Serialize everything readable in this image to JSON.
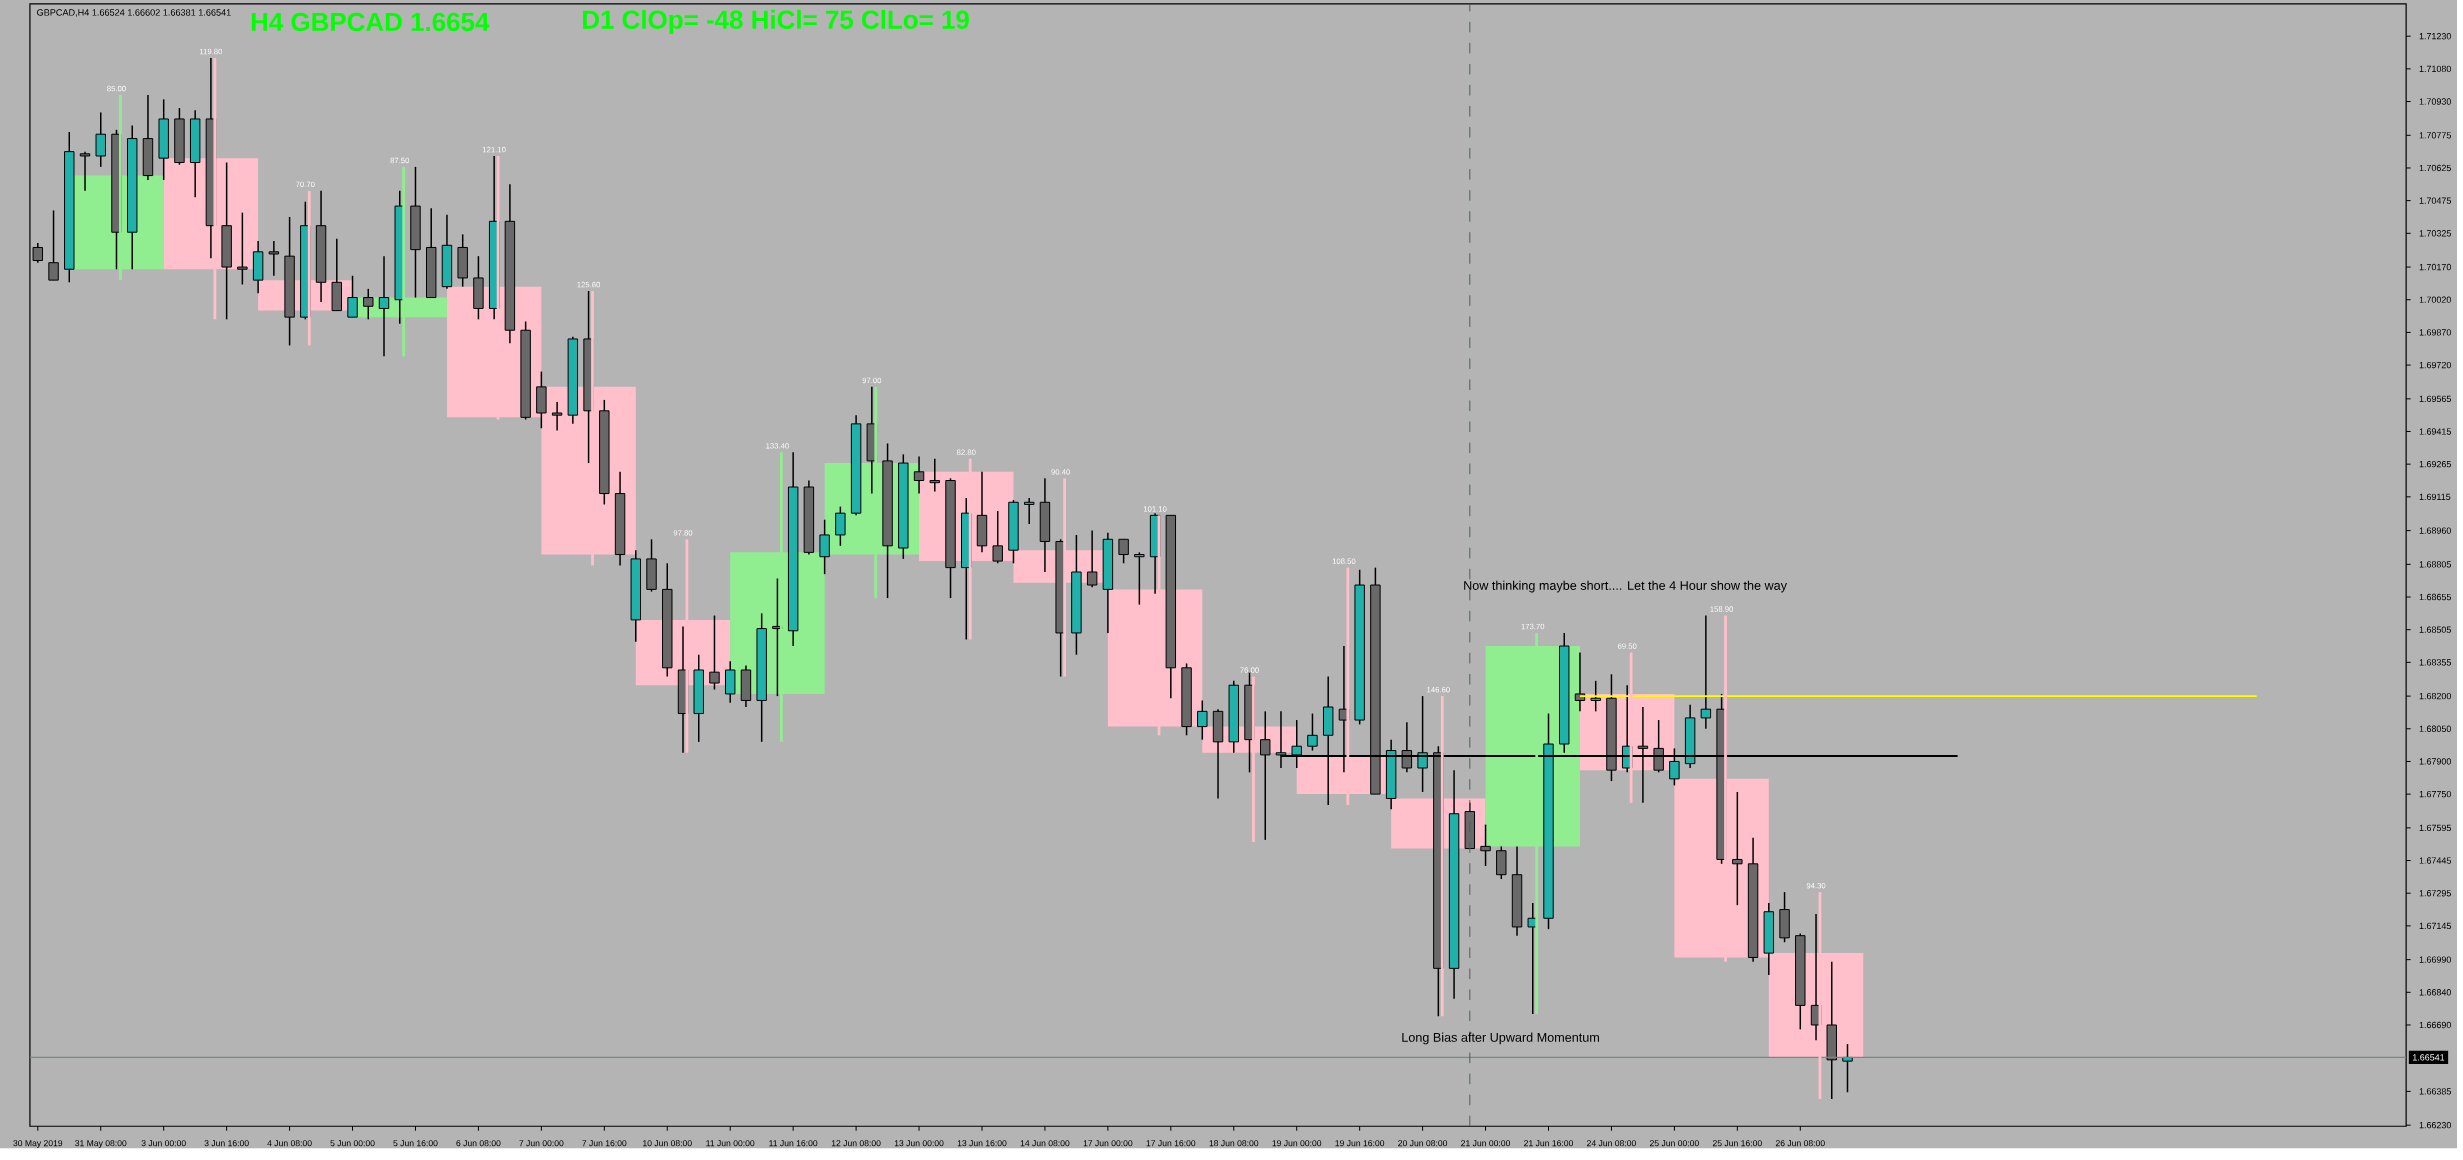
{
  "chart_data": {
    "type": "candlestick",
    "title": "H4 GBPCAD 1.6654",
    "subtitle": "D1 ClOp= -48 HiCl= 75 ClLo= 19",
    "annotations": [
      "GBPCAD,H4 1.66524 1.66602 1.66381 1.66541",
      "Now thinking maybe short.... Let the 4 Hour show the way",
      "Long Bias after Upward Momentum"
    ],
    "categories": [
      "30 May 2019",
      null,
      null,
      null,
      "31 May 08:00",
      null,
      null,
      null,
      "3 Jun 00:00",
      null,
      null,
      null,
      "3 Jun 16:00",
      null,
      null,
      null,
      "4 Jun 08:00",
      null,
      null,
      null,
      "5 Jun 00:00",
      null,
      null,
      null,
      "5 Jun 16:00",
      null,
      null,
      null,
      "6 Jun 08:00",
      null,
      null,
      null,
      "7 Jun 00:00",
      null,
      null,
      null,
      "7 Jun 16:00",
      null,
      null,
      null,
      "10 Jun 08:00",
      null,
      null,
      null,
      "11 Jun 00:00",
      null,
      null,
      null,
      "11 Jun 16:00",
      null,
      null,
      null,
      "12 Jun 08:00",
      null,
      null,
      null,
      "13 Jun 00:00",
      null,
      null,
      null,
      "13 Jun 16:00",
      null,
      null,
      null,
      "14 Jun 08:00",
      null,
      null,
      null,
      "17 Jun 00:00",
      null,
      null,
      null,
      "17 Jun 16:00",
      null,
      null,
      null,
      "18 Jun 08:00",
      null,
      null,
      null,
      "19 Jun 00:00",
      null,
      null,
      null,
      "19 Jun 16:00",
      null,
      null,
      null,
      "20 Jun 08:00",
      null,
      null,
      null,
      "21 Jun 00:00",
      null,
      null,
      null,
      "21 Jun 16:00",
      null,
      null,
      null,
      "24 Jun 08:00",
      null,
      null,
      null,
      "25 Jun 00:00",
      null,
      null,
      null,
      "25 Jun 16:00",
      null,
      null,
      null,
      "26 Jun 08:00",
      null,
      null,
      null,
      null,
      null,
      null,
      null,
      null,
      null,
      null,
      null,
      null,
      null,
      null,
      null,
      null,
      null,
      null,
      null,
      null,
      null,
      null,
      null,
      null,
      null,
      null,
      null,
      null,
      null,
      null,
      null,
      null,
      null,
      null,
      null,
      null,
      null,
      null
    ],
    "ylim": [
      1.66225,
      1.71378
    ],
    "yticks": [
      {
        "value": 1.7123,
        "label": "1.71230"
      },
      {
        "value": 1.7108,
        "label": "1.71080"
      },
      {
        "value": 1.7093,
        "label": "1.70930"
      },
      {
        "value": 1.70775,
        "label": "1.70775"
      },
      {
        "value": 1.70625,
        "label": "1.70625"
      },
      {
        "value": 1.70475,
        "label": "1.70475"
      },
      {
        "value": 1.70325,
        "label": "1.70325"
      },
      {
        "value": 1.7017,
        "label": "1.70170"
      },
      {
        "value": 1.7002,
        "label": "1.70020"
      },
      {
        "value": 1.6987,
        "label": "1.69870"
      },
      {
        "value": 1.6972,
        "label": "1.69720"
      },
      {
        "value": 1.69565,
        "label": "1.69565"
      },
      {
        "value": 1.69415,
        "label": "1.69415"
      },
      {
        "value": 1.69265,
        "label": "1.69265"
      },
      {
        "value": 1.69115,
        "label": "1.69115"
      },
      {
        "value": 1.6896,
        "label": "1.68960"
      },
      {
        "value": 1.68805,
        "label": "1.68805"
      },
      {
        "value": 1.68655,
        "label": "1.68655"
      },
      {
        "value": 1.68505,
        "label": "1.68505"
      },
      {
        "value": 1.68355,
        "label": "1.68355"
      },
      {
        "value": 1.682,
        "label": "1.68200"
      },
      {
        "value": 1.6805,
        "label": "1.68050"
      },
      {
        "value": 1.679,
        "label": "1.67900"
      },
      {
        "value": 1.6775,
        "label": "1.67750"
      },
      {
        "value": 1.67595,
        "label": "1.67595"
      },
      {
        "value": 1.67445,
        "label": "1.67445"
      },
      {
        "value": 1.67295,
        "label": "1.67295"
      },
      {
        "value": 1.67145,
        "label": "1.67145"
      },
      {
        "value": 1.6699,
        "label": "1.66990"
      },
      {
        "value": 1.6684,
        "label": "1.66840"
      },
      {
        "value": 1.6669,
        "label": "1.66690"
      },
      {
        "value": 1.66385,
        "label": "1.66385"
      },
      {
        "value": 1.6623,
        "label": "1.66230"
      }
    ],
    "ref_lines": [
      {
        "axis": "y",
        "value": 1.66541,
        "label": "1.66541",
        "color": "#778888"
      }
    ],
    "series": [
      {
        "type": "candlestick",
        "ohlc": [
          null,
          null,
          null,
          null,
          null,
          [
            1.7016,
            1.7096,
            1.7011,
            1.7059
          ],
          null,
          null,
          null,
          null,
          null,
          [
            1.7067,
            1.7113,
            1.6993,
            1.7016
          ],
          null,
          null,
          null,
          null,
          null,
          [
            1.7011,
            1.7052,
            1.6981,
            1.6997
          ],
          null,
          null,
          null,
          null,
          null,
          [
            1.6994,
            1.7063,
            1.6976,
            1.7003
          ],
          null,
          null,
          null,
          null,
          null,
          [
            1.7008,
            1.7068,
            1.6947,
            1.6948
          ],
          null,
          null,
          null,
          null,
          null,
          [
            1.6962,
            1.7006,
            1.688,
            1.6885
          ],
          null,
          null,
          null,
          null,
          null,
          [
            1.6855,
            1.6892,
            1.6794,
            1.6825
          ],
          null,
          null,
          null,
          null,
          null,
          [
            1.6821,
            1.6932,
            1.6799,
            1.6886
          ],
          null,
          null,
          null,
          null,
          null,
          [
            1.6885,
            1.6962,
            1.6865,
            1.6927
          ],
          null,
          null,
          null,
          null,
          null,
          [
            1.6923,
            1.6929,
            1.6846,
            1.6882
          ],
          null,
          null,
          null,
          null,
          null,
          [
            1.6887,
            1.692,
            1.6829,
            1.6872
          ],
          null,
          null,
          null,
          null,
          null,
          [
            1.6869,
            1.6903,
            1.6802,
            1.6806
          ],
          null,
          null,
          null,
          null,
          null,
          [
            1.6806,
            1.6829,
            1.6753,
            1.6794
          ],
          null,
          null,
          null,
          null,
          null,
          [
            1.6793,
            1.6879,
            1.677,
            1.6775
          ],
          null,
          null,
          null,
          null,
          null,
          [
            1.6773,
            1.682,
            1.6673,
            1.675
          ],
          null,
          null,
          null,
          null,
          null,
          [
            1.6751,
            1.6849,
            1.6674,
            1.6843
          ],
          null,
          null,
          null,
          null,
          null,
          [
            1.6821,
            1.684,
            1.6771,
            1.6786
          ],
          null,
          null,
          null,
          null,
          null,
          [
            1.6782,
            1.6857,
            1.6698,
            1.67
          ],
          null,
          null,
          null,
          null,
          null,
          [
            1.6702,
            1.673,
            1.6635,
            1.66541
          ],
          null,
          null,
          null,
          null,
          null,
          null,
          null,
          null,
          null,
          null,
          null,
          null,
          null,
          null,
          null,
          null,
          null,
          null,
          null,
          null,
          null,
          null,
          null,
          null,
          null,
          null,
          null,
          null,
          null,
          null,
          null,
          null,
          null,
          null,
          null,
          null,
          null
        ],
        "value_labels": [
          null,
          null,
          null,
          null,
          null,
          "85.00",
          null,
          null,
          null,
          null,
          null,
          "119.80",
          null,
          null,
          null,
          null,
          null,
          "70.70",
          null,
          null,
          null,
          null,
          null,
          "87.50",
          null,
          null,
          null,
          null,
          null,
          "121.10",
          null,
          null,
          null,
          null,
          null,
          "125.60",
          null,
          null,
          null,
          null,
          null,
          "97.80",
          null,
          null,
          null,
          null,
          null,
          "133.40",
          null,
          null,
          null,
          null,
          null,
          "97.00",
          null,
          null,
          null,
          null,
          null,
          "82.80",
          null,
          null,
          null,
          null,
          null,
          "90.40",
          null,
          null,
          null,
          null,
          null,
          "101.10",
          null,
          null,
          null,
          null,
          null,
          "76.00",
          null,
          null,
          null,
          null,
          null,
          "108.50",
          null,
          null,
          null,
          null,
          null,
          "146.60",
          null,
          null,
          null,
          null,
          null,
          "173.70",
          null,
          null,
          null,
          null,
          null,
          "69.50",
          null,
          null,
          null,
          null,
          null,
          "158.90",
          null,
          null,
          null,
          null,
          null,
          "94.30",
          null,
          null,
          null,
          null,
          null,
          null,
          null,
          null,
          null,
          null,
          null,
          null,
          null,
          null,
          null,
          null,
          null,
          null,
          null,
          null,
          null,
          null,
          null,
          null,
          null,
          null,
          null,
          null,
          null,
          null,
          null,
          null,
          null,
          null,
          null,
          null,
          null
        ],
        "colors": [
          null,
          null,
          null,
          null,
          null,
          "#90ee90",
          null,
          null,
          null,
          null,
          null,
          "#ffc0cb",
          null,
          null,
          null,
          null,
          null,
          "#ffc0cb",
          null,
          null,
          null,
          null,
          null,
          "#90ee90",
          null,
          null,
          null,
          null,
          null,
          "#ffc0cb",
          null,
          null,
          null,
          null,
          null,
          "#ffc0cb",
          null,
          null,
          null,
          null,
          null,
          "#ffc0cb",
          null,
          null,
          null,
          null,
          null,
          "#90ee90",
          null,
          null,
          null,
          null,
          null,
          "#90ee90",
          null,
          null,
          null,
          null,
          null,
          "#ffc0cb",
          null,
          null,
          null,
          null,
          null,
          "#ffc0cb",
          null,
          null,
          null,
          null,
          null,
          "#ffc0cb",
          null,
          null,
          null,
          null,
          null,
          "#ffc0cb",
          null,
          null,
          null,
          null,
          null,
          "#ffc0cb",
          null,
          null,
          null,
          null,
          null,
          "#ffc0cb",
          null,
          null,
          null,
          null,
          null,
          "#90ee90",
          null,
          null,
          null,
          null,
          null,
          "#ffc0cb",
          null,
          null,
          null,
          null,
          null,
          "#ffc0cb",
          null,
          null,
          null,
          null,
          null,
          "#ffc0cb",
          null,
          null,
          null,
          null,
          null,
          null,
          null,
          null,
          null,
          null,
          null,
          null,
          null,
          null,
          null,
          null,
          null,
          null,
          null,
          null,
          null,
          null,
          null,
          null,
          null,
          null,
          null,
          null,
          null,
          null,
          null,
          null,
          null,
          null,
          null,
          null,
          null
        ]
      },
      {
        "ohlc": [
          [
            1.7026,
            1.7028,
            1.7019,
            1.702
          ],
          [
            1.7019,
            1.7043,
            1.7011,
            1.7011
          ],
          [
            1.7016,
            1.7079,
            1.701,
            1.707
          ],
          [
            1.7069,
            1.707,
            1.7052,
            1.7068
          ],
          [
            1.7068,
            1.7088,
            1.7063,
            1.7078
          ],
          [
            1.7078,
            1.708,
            1.7016,
            1.7033
          ],
          [
            1.7033,
            1.7082,
            1.7016,
            1.7076
          ],
          [
            1.7076,
            1.7096,
            1.7057,
            1.7059
          ],
          [
            1.7067,
            1.7094,
            1.7057,
            1.7085
          ],
          [
            1.7085,
            1.709,
            1.7064,
            1.7065
          ],
          [
            1.7065,
            1.7089,
            1.7049,
            1.7085
          ],
          [
            1.7085,
            1.7113,
            1.7021,
            1.7036
          ],
          [
            1.7036,
            1.7065,
            1.6993,
            1.7017
          ],
          [
            1.7017,
            1.7042,
            1.7009,
            1.7016
          ],
          [
            1.7011,
            1.7029,
            1.7005,
            1.7024
          ],
          [
            1.7024,
            1.7029,
            1.7013,
            1.7023
          ],
          [
            1.7022,
            1.704,
            1.6981,
            1.6994
          ],
          [
            1.6994,
            1.7047,
            1.6993,
            1.7036
          ],
          [
            1.7036,
            1.7052,
            1.7001,
            1.701
          ],
          [
            1.701,
            1.703,
            1.6997,
            1.6997
          ],
          [
            1.6994,
            1.7013,
            1.6994,
            1.7003
          ],
          [
            1.7003,
            1.7007,
            1.6993,
            1.6999
          ],
          [
            1.6998,
            1.7022,
            1.6976,
            1.7003
          ],
          [
            1.7002,
            1.7052,
            1.6991,
            1.7045
          ],
          [
            1.7045,
            1.7063,
            1.7003,
            1.7025
          ],
          [
            1.7026,
            1.7044,
            1.7003,
            1.7003
          ],
          [
            1.7008,
            1.7041,
            1.7007,
            1.7027
          ],
          [
            1.7026,
            1.7032,
            1.7008,
            1.7012
          ],
          [
            1.7012,
            1.7022,
            1.6993,
            1.6998
          ],
          [
            1.6998,
            1.7068,
            1.6993,
            1.7038
          ],
          [
            1.7038,
            1.7055,
            1.6982,
            1.6988
          ],
          [
            1.6988,
            1.6992,
            1.6947,
            1.6948
          ],
          [
            1.6962,
            1.6969,
            1.6943,
            1.695
          ],
          [
            1.695,
            1.6955,
            1.6942,
            1.6949
          ],
          [
            1.6949,
            1.6985,
            1.6945,
            1.6984
          ],
          [
            1.6984,
            1.7006,
            1.6927,
            1.6951
          ],
          [
            1.6951,
            1.6956,
            1.6908,
            1.6913
          ],
          [
            1.6913,
            1.6923,
            1.688,
            1.6885
          ],
          [
            1.6855,
            1.6887,
            1.6845,
            1.6883
          ],
          [
            1.6883,
            1.6892,
            1.6868,
            1.6869
          ],
          [
            1.6869,
            1.6881,
            1.6829,
            1.6833
          ],
          [
            1.6832,
            1.6852,
            1.6794,
            1.6812
          ],
          [
            1.6812,
            1.6839,
            1.6799,
            1.6832
          ],
          [
            1.6831,
            1.6857,
            1.6823,
            1.6826
          ],
          [
            1.6821,
            1.6836,
            1.6817,
            1.6832
          ],
          [
            1.6832,
            1.6834,
            1.6815,
            1.6818
          ],
          [
            1.6818,
            1.6858,
            1.6799,
            1.6851
          ],
          [
            1.6852,
            1.6874,
            1.682,
            1.6851
          ],
          [
            1.685,
            1.6932,
            1.6843,
            1.6916
          ],
          [
            1.6916,
            1.6919,
            1.6885,
            1.6886
          ],
          [
            1.6884,
            1.6901,
            1.6876,
            1.6894
          ],
          [
            1.6894,
            1.6907,
            1.6889,
            1.6904
          ],
          [
            1.6904,
            1.6949,
            1.6903,
            1.6945
          ],
          [
            1.6945,
            1.6962,
            1.6913,
            1.6928
          ],
          [
            1.6928,
            1.6936,
            1.6865,
            1.6889
          ],
          [
            1.6888,
            1.6931,
            1.6883,
            1.6927
          ],
          [
            1.6923,
            1.693,
            1.6913,
            1.6919
          ],
          [
            1.6919,
            1.6929,
            1.6914,
            1.6918
          ],
          [
            1.6919,
            1.692,
            1.6865,
            1.6879
          ],
          [
            1.6879,
            1.6911,
            1.6846,
            1.6904
          ],
          [
            1.6903,
            1.6923,
            1.6886,
            1.6889
          ],
          [
            1.6889,
            1.6905,
            1.6881,
            1.6882
          ],
          [
            1.6887,
            1.691,
            1.6881,
            1.6909
          ],
          [
            1.6908,
            1.6911,
            1.6899,
            1.6909
          ],
          [
            1.6909,
            1.692,
            1.6877,
            1.6891
          ],
          [
            1.6891,
            1.6892,
            1.6829,
            1.6849
          ],
          [
            1.6849,
            1.6894,
            1.6839,
            1.6877
          ],
          [
            1.6877,
            1.6896,
            1.687,
            1.6871
          ],
          [
            1.6869,
            1.6895,
            1.6849,
            1.6892
          ],
          [
            1.6892,
            1.6892,
            1.6881,
            1.6885
          ],
          [
            1.6884,
            1.6886,
            1.6862,
            1.6885
          ],
          [
            1.6884,
            1.6904,
            1.6867,
            1.6903
          ],
          [
            1.6903,
            1.6903,
            1.6819,
            1.6833
          ],
          [
            1.6833,
            1.6835,
            1.6802,
            1.6806
          ],
          [
            1.6806,
            1.6818,
            1.68,
            1.6813
          ],
          [
            1.6813,
            1.6814,
            1.6773,
            1.6799
          ],
          [
            1.6799,
            1.6827,
            1.6794,
            1.6825
          ],
          [
            1.6825,
            1.6831,
            1.6785,
            1.68
          ],
          [
            1.68,
            1.6813,
            1.6754,
            1.6793
          ],
          [
            1.6793,
            1.6813,
            1.6787,
            1.6794
          ],
          [
            1.6793,
            1.6809,
            1.6787,
            1.6797
          ],
          [
            1.6797,
            1.6812,
            1.6795,
            1.6802
          ],
          [
            1.6802,
            1.6829,
            1.677,
            1.6815
          ],
          [
            1.6814,
            1.6843,
            1.6785,
            1.6809
          ],
          [
            1.6809,
            1.6878,
            1.6807,
            1.6871
          ],
          [
            1.6871,
            1.6879,
            1.6775,
            1.6775
          ],
          [
            1.6773,
            1.68,
            1.6768,
            1.6795
          ],
          [
            1.6795,
            1.6808,
            1.6785,
            1.6787
          ],
          [
            1.6787,
            1.682,
            1.6776,
            1.6794
          ],
          [
            1.6794,
            1.6797,
            1.6673,
            1.6695
          ],
          [
            1.6695,
            1.6786,
            1.6681,
            1.6766
          ],
          [
            1.6767,
            1.6771,
            1.675,
            1.675
          ],
          [
            1.6751,
            1.6761,
            1.6742,
            1.6749
          ],
          [
            1.6749,
            1.6751,
            1.6736,
            1.6738
          ],
          [
            1.6738,
            1.6751,
            1.671,
            1.6714
          ],
          [
            1.6714,
            1.6725,
            1.6674,
            1.6718
          ],
          [
            1.6718,
            1.6812,
            1.6713,
            1.6798
          ],
          [
            1.6798,
            1.6849,
            1.6794,
            1.6843
          ],
          [
            1.6821,
            1.684,
            1.6813,
            1.6818
          ],
          [
            1.6818,
            1.6827,
            1.6813,
            1.6819
          ],
          [
            1.6819,
            1.683,
            1.6781,
            1.6786
          ],
          [
            1.6787,
            1.6825,
            1.6785,
            1.6797
          ],
          [
            1.6797,
            1.6815,
            1.6771,
            1.6796
          ],
          [
            1.6796,
            1.6809,
            1.6785,
            1.6786
          ],
          [
            1.6782,
            1.6796,
            1.6779,
            1.679
          ],
          [
            1.6789,
            1.6816,
            1.6787,
            1.681
          ],
          [
            1.681,
            1.6857,
            1.6805,
            1.6814
          ],
          [
            1.6814,
            1.6821,
            1.6743,
            1.6745
          ],
          [
            1.6745,
            1.6776,
            1.6724,
            1.6743
          ],
          [
            1.6743,
            1.6755,
            1.6698,
            1.67
          ],
          [
            1.6702,
            1.6725,
            1.6692,
            1.6721
          ],
          [
            1.6722,
            1.673,
            1.6707,
            1.6709
          ],
          [
            1.671,
            1.6711,
            1.6667,
            1.6678
          ],
          [
            1.6678,
            1.672,
            1.6662,
            1.6669
          ],
          [
            1.6669,
            1.6698,
            1.6635,
            1.6653
          ],
          [
            1.66524,
            1.66602,
            1.66381,
            1.66541
          ],
          null,
          null,
          null,
          null,
          null,
          null,
          null,
          null,
          null,
          null,
          null,
          null,
          null,
          null,
          null,
          null,
          null,
          null,
          null,
          null,
          null,
          null,
          null,
          null,
          null,
          null,
          null,
          null,
          null,
          null,
          null,
          null,
          null,
          null,
          null
        ],
        "colors": [
          "#696969",
          "#696969",
          "#20b2aa",
          "#696969",
          "#20b2aa",
          "#696969",
          "#20b2aa",
          "#696969",
          "#20b2aa",
          "#696969",
          "#20b2aa",
          "#696969",
          "#696969",
          "#696969",
          "#20b2aa",
          "#696969",
          "#696969",
          "#20b2aa",
          "#696969",
          "#696969",
          "#20b2aa",
          "#696969",
          "#20b2aa",
          "#20b2aa",
          "#696969",
          "#696969",
          "#20b2aa",
          "#696969",
          "#696969",
          "#20b2aa",
          "#696969",
          "#696969",
          "#696969",
          "#696969",
          "#20b2aa",
          "#696969",
          "#696969",
          "#696969",
          "#20b2aa",
          "#696969",
          "#696969",
          "#696969",
          "#20b2aa",
          "#696969",
          "#20b2aa",
          "#696969",
          "#20b2aa",
          "#696969",
          "#20b2aa",
          "#696969",
          "#20b2aa",
          "#20b2aa",
          "#20b2aa",
          "#696969",
          "#696969",
          "#20b2aa",
          "#696969",
          "#696969",
          "#696969",
          "#20b2aa",
          "#696969",
          "#696969",
          "#20b2aa",
          "#20b2aa",
          "#696969",
          "#696969",
          "#20b2aa",
          "#696969",
          "#20b2aa",
          "#696969",
          "#20b2aa",
          "#20b2aa",
          "#696969",
          "#696969",
          "#20b2aa",
          "#696969",
          "#20b2aa",
          "#696969",
          "#696969",
          "#20b2aa",
          "#20b2aa",
          "#20b2aa",
          "#20b2aa",
          "#696969",
          "#20b2aa",
          "#696969",
          "#20b2aa",
          "#696969",
          "#20b2aa",
          "#696969",
          "#20b2aa",
          "#696969",
          "#696969",
          "#696969",
          "#696969",
          "#20b2aa",
          "#20b2aa",
          "#20b2aa",
          "#696969",
          "#20b2aa",
          "#696969",
          "#20b2aa",
          "#696969",
          "#696969",
          "#20b2aa",
          "#20b2aa",
          "#20b2aa",
          "#696969",
          "#696969",
          "#696969",
          "#20b2aa",
          "#696969",
          "#696969",
          "#696969",
          "#696969",
          "#20b2aa",
          null,
          null,
          null,
          null,
          null,
          null,
          null,
          null,
          null,
          null,
          null,
          null,
          null,
          null,
          null,
          null,
          null,
          null,
          null,
          null,
          null,
          null,
          null,
          null,
          null,
          null,
          null,
          null,
          null,
          null,
          null,
          null,
          null,
          null,
          null
        ]
      },
      {
        "type": "line",
        "color": "#ffff00",
        "values": [
          null,
          null,
          null,
          null,
          null,
          null,
          null,
          null,
          null,
          null,
          null,
          null,
          null,
          null,
          null,
          null,
          null,
          null,
          null,
          null,
          null,
          null,
          null,
          null,
          null,
          null,
          null,
          null,
          null,
          null,
          null,
          null,
          null,
          null,
          null,
          null,
          null,
          null,
          null,
          null,
          null,
          null,
          null,
          null,
          null,
          null,
          null,
          null,
          null,
          null,
          null,
          null,
          null,
          null,
          null,
          null,
          null,
          null,
          null,
          null,
          null,
          null,
          null,
          null,
          null,
          null,
          null,
          null,
          null,
          null,
          null,
          null,
          null,
          null,
          null,
          null,
          null,
          null,
          null,
          null,
          null,
          null,
          null,
          null,
          null,
          null,
          null,
          null,
          null,
          null,
          null,
          null,
          null,
          null,
          null,
          null,
          null,
          null,
          1.682,
          1.682,
          1.682,
          1.682,
          1.682,
          1.682,
          1.682,
          1.682,
          1.682,
          1.682,
          1.682,
          1.682,
          1.682,
          1.682,
          1.682,
          1.682,
          1.682,
          1.682,
          1.682,
          1.682,
          1.682,
          1.682,
          1.682,
          1.682,
          1.682,
          1.682,
          1.682,
          1.682,
          1.682,
          1.682,
          1.682,
          1.682,
          1.682,
          1.682,
          1.682,
          1.682,
          1.682,
          1.682,
          1.682,
          1.682,
          1.682,
          1.682,
          1.682,
          1.682,
          null,
          null,
          null,
          null,
          null,
          null,
          null,
          null,
          null
        ]
      },
      {
        "type": "line",
        "color": "#000000",
        "values": [
          null,
          null,
          null,
          null,
          null,
          null,
          null,
          null,
          null,
          null,
          null,
          null,
          null,
          null,
          null,
          null,
          null,
          null,
          null,
          null,
          null,
          null,
          null,
          null,
          null,
          null,
          null,
          null,
          null,
          null,
          null,
          null,
          null,
          null,
          null,
          null,
          null,
          null,
          null,
          null,
          null,
          null,
          null,
          null,
          null,
          null,
          null,
          null,
          null,
          null,
          null,
          null,
          null,
          null,
          null,
          null,
          null,
          null,
          null,
          null,
          null,
          null,
          null,
          null,
          null,
          null,
          null,
          null,
          null,
          null,
          null,
          null,
          null,
          null,
          null,
          null,
          null,
          null,
          null,
          1.67925,
          1.67925,
          1.67925,
          1.67925,
          1.67925,
          1.67925,
          1.67925,
          1.67925,
          1.67925,
          1.67925,
          1.67925,
          1.67925,
          1.67925,
          1.67925,
          1.67925,
          1.67925,
          1.67925,
          1.67925,
          1.67925,
          1.67925,
          1.67925,
          1.67925,
          1.67925,
          1.67925,
          1.67925,
          1.67925,
          1.67925,
          1.67925,
          1.67925,
          1.67925,
          1.67925,
          1.67925,
          1.67925,
          1.67925,
          1.67925,
          1.67925,
          1.67925,
          1.67925,
          1.67925,
          1.67925,
          1.67925,
          1.67925,
          1.67925,
          1.67925,
          null,
          null,
          null,
          null,
          null,
          null,
          null,
          null,
          null,
          null,
          null,
          null,
          null,
          null,
          null,
          null,
          null,
          null,
          null,
          null,
          null,
          null,
          null,
          null,
          null,
          null,
          null,
          null
        ]
      }
    ]
  }
}
